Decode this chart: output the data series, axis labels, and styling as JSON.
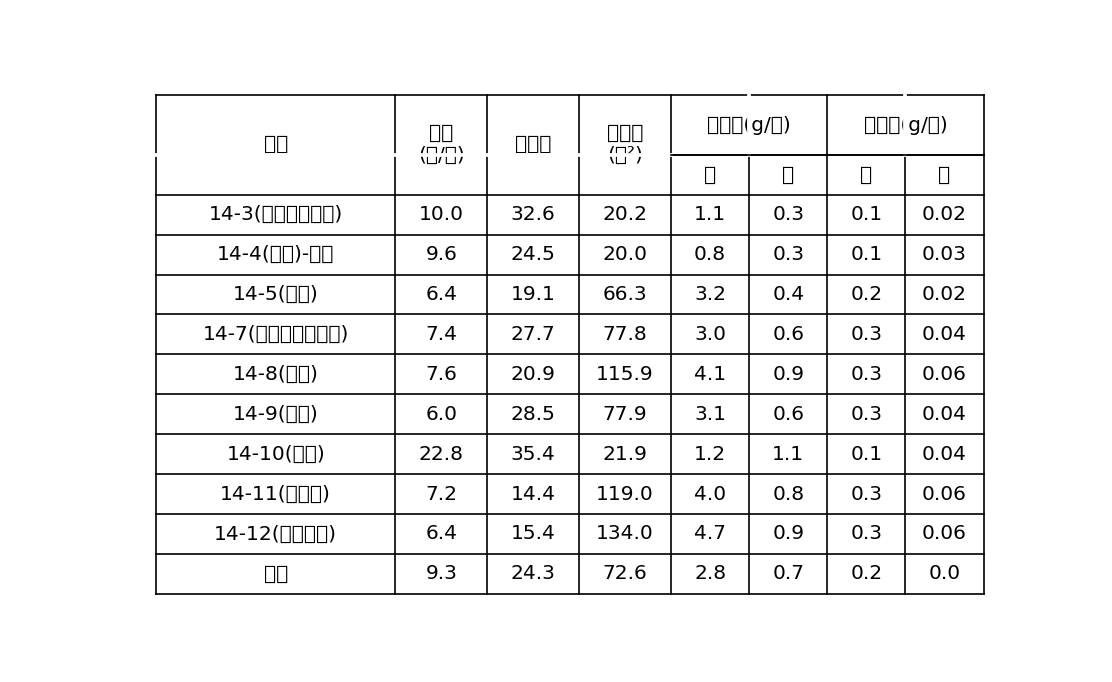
{
  "headers_row1_left": [
    "번호",
    "엽수\n(매/주)",
    "엽록소",
    "엽면적\n(㎝²)"
  ],
  "headers_row1_merged": [
    "생체중(g/주)",
    "건물중(g/주)"
  ],
  "headers_row2_sub": [
    "상",
    "하",
    "상",
    "하"
  ],
  "rows": [
    [
      "14-3(특선대엽형개)",
      "10.0",
      "32.6",
      "20.2",
      "1.1",
      "0.3",
      "0.1",
      "0.02"
    ],
    [
      "14-4(齊菜)-냉이",
      "9.6",
      "24.5",
      "20.0",
      "0.8",
      "0.3",
      "0.1",
      "0.03"
    ],
    [
      "14-5(菜五)",
      "6.4",
      "19.1",
      "66.3",
      "3.2",
      "0.4",
      "0.2",
      "0.02"
    ],
    [
      "14-7(汶堡咖啡香表菜)",
      "7.4",
      "27.7",
      "77.8",
      "3.0",
      "0.6",
      "0.3",
      "0.04"
    ],
    [
      "14-8(菜八)",
      "7.6",
      "20.9",
      "115.9",
      "4.1",
      "0.9",
      "0.3",
      "0.06"
    ],
    [
      "14-9(菜九)",
      "6.0",
      "28.5",
      "77.9",
      "3.1",
      "0.6",
      "0.3",
      "0.04"
    ],
    [
      "14-10(菜十)",
      "22.8",
      "35.4",
      "21.9",
      "1.2",
      "1.1",
      "0.1",
      "0.04"
    ],
    [
      "14-11(菜十一)",
      "7.2",
      "14.4",
      "119.0",
      "4.0",
      "0.8",
      "0.3",
      "0.06"
    ],
    [
      "14-12(皇家紅秀)",
      "6.4",
      "15.4",
      "134.0",
      "4.7",
      "0.9",
      "0.3",
      "0.06"
    ],
    [
      "평균",
      "9.3",
      "24.3",
      "72.6",
      "2.8",
      "0.7",
      "0.2",
      "0.0"
    ]
  ],
  "col_widths_ratio": [
    2.6,
    1.0,
    1.0,
    1.0,
    0.85,
    0.85,
    0.85,
    0.85
  ],
  "background_color": "#ffffff",
  "line_color": "#000000",
  "font_size": 14.5,
  "header_font_size": 14.5
}
